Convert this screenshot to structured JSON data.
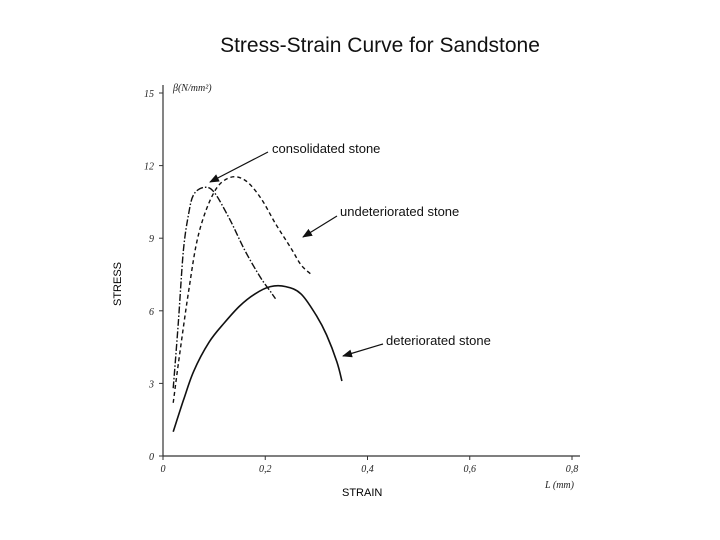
{
  "chart_data": {
    "type": "line",
    "title": "Stress-Strain Curve for Sandstone",
    "xlabel": "STRAIN",
    "ylabel": "STRESS",
    "x_unit_label": "L (mm)",
    "y_unit_label": "β(N/mm²)",
    "xlim": [
      0,
      0.8
    ],
    "ylim": [
      0,
      15
    ],
    "x_ticks": [
      "0",
      "0,2",
      "0,4",
      "0,6",
      "0,8"
    ],
    "y_ticks": [
      "0",
      "3",
      "6",
      "9",
      "12",
      "15"
    ],
    "series": [
      {
        "name": "consolidated stone",
        "style": "dashdot",
        "x": [
          0.02,
          0.03,
          0.04,
          0.05,
          0.06,
          0.08,
          0.1,
          0.13,
          0.16,
          0.19,
          0.21,
          0.22
        ],
        "y": [
          2.8,
          5.5,
          8.5,
          10.0,
          10.8,
          11.1,
          10.9,
          9.8,
          8.5,
          7.4,
          6.8,
          6.5
        ]
      },
      {
        "name": "undeteriorated stone",
        "style": "dashed",
        "x": [
          0.02,
          0.03,
          0.05,
          0.07,
          0.1,
          0.13,
          0.16,
          0.19,
          0.22,
          0.25,
          0.27,
          0.29
        ],
        "y": [
          2.2,
          3.8,
          6.8,
          9.2,
          10.9,
          11.5,
          11.4,
          10.7,
          9.6,
          8.6,
          7.9,
          7.5
        ]
      },
      {
        "name": "deteriorated stone",
        "style": "solid",
        "x": [
          0.02,
          0.04,
          0.06,
          0.09,
          0.12,
          0.15,
          0.18,
          0.21,
          0.24,
          0.27,
          0.3,
          0.32,
          0.34,
          0.35
        ],
        "y": [
          1.0,
          2.3,
          3.5,
          4.7,
          5.5,
          6.2,
          6.7,
          7.0,
          7.0,
          6.7,
          5.8,
          5.0,
          3.9,
          3.1
        ]
      }
    ],
    "annotations": [
      {
        "text": "consolidated stone",
        "series": 0
      },
      {
        "text": "undeteriorated stone",
        "series": 1
      },
      {
        "text": "deteriorated stone",
        "series": 2
      }
    ]
  }
}
